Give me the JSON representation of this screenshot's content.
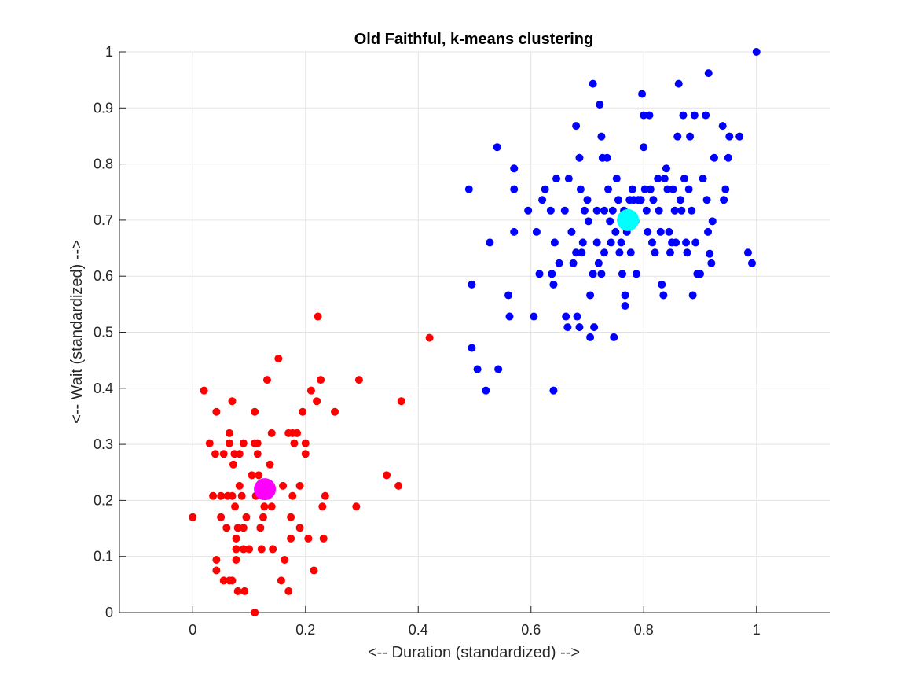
{
  "chart_data": {
    "type": "scatter",
    "title": "Old Faithful, k-means clustering",
    "xlabel": "<-- Duration (standardized) -->",
    "ylabel": "<-- Wait (standardized) -->",
    "xlim": [
      -0.13,
      1.13
    ],
    "ylim": [
      0,
      1
    ],
    "xticks": [
      0,
      0.2,
      0.4,
      0.6,
      0.8,
      1
    ],
    "xtick_labels": [
      "0",
      "0.2",
      "0.4",
      "0.6",
      "0.8",
      "1"
    ],
    "yticks": [
      0,
      0.1,
      0.2,
      0.3,
      0.4,
      0.5,
      0.6,
      0.7,
      0.8,
      0.9,
      1
    ],
    "ytick_labels": [
      "0",
      "0.1",
      "0.2",
      "0.3",
      "0.4",
      "0.5",
      "0.6",
      "0.7",
      "0.8",
      "0.9",
      "1"
    ],
    "grid": true,
    "series": [
      {
        "color": "#ff0000",
        "points": [
          [
            0.0,
            0.17
          ],
          [
            0.02,
            0.396
          ],
          [
            0.03,
            0.302
          ],
          [
            0.036,
            0.208
          ],
          [
            0.04,
            0.283
          ],
          [
            0.042,
            0.358
          ],
          [
            0.042,
            0.094
          ],
          [
            0.042,
            0.075
          ],
          [
            0.05,
            0.208
          ],
          [
            0.05,
            0.17
          ],
          [
            0.055,
            0.057
          ],
          [
            0.055,
            0.283
          ],
          [
            0.06,
            0.151
          ],
          [
            0.062,
            0.208
          ],
          [
            0.065,
            0.32
          ],
          [
            0.065,
            0.302
          ],
          [
            0.065,
            0.057
          ],
          [
            0.07,
            0.377
          ],
          [
            0.07,
            0.208
          ],
          [
            0.07,
            0.057
          ],
          [
            0.072,
            0.264
          ],
          [
            0.074,
            0.283
          ],
          [
            0.075,
            0.189
          ],
          [
            0.077,
            0.132
          ],
          [
            0.077,
            0.113
          ],
          [
            0.077,
            0.094
          ],
          [
            0.08,
            0.151
          ],
          [
            0.08,
            0.038
          ],
          [
            0.083,
            0.283
          ],
          [
            0.083,
            0.226
          ],
          [
            0.087,
            0.208
          ],
          [
            0.09,
            0.302
          ],
          [
            0.09,
            0.151
          ],
          [
            0.09,
            0.113
          ],
          [
            0.092,
            0.038
          ],
          [
            0.095,
            0.17
          ],
          [
            0.1,
            0.113
          ],
          [
            0.105,
            0.245
          ],
          [
            0.11,
            0.0
          ],
          [
            0.11,
            0.358
          ],
          [
            0.11,
            0.302
          ],
          [
            0.112,
            0.208
          ],
          [
            0.115,
            0.302
          ],
          [
            0.115,
            0.283
          ],
          [
            0.117,
            0.245
          ],
          [
            0.12,
            0.226
          ],
          [
            0.12,
            0.151
          ],
          [
            0.122,
            0.113
          ],
          [
            0.125,
            0.17
          ],
          [
            0.127,
            0.189
          ],
          [
            0.132,
            0.415
          ],
          [
            0.137,
            0.264
          ],
          [
            0.14,
            0.32
          ],
          [
            0.14,
            0.189
          ],
          [
            0.142,
            0.113
          ],
          [
            0.152,
            0.453
          ],
          [
            0.157,
            0.057
          ],
          [
            0.16,
            0.226
          ],
          [
            0.163,
            0.094
          ],
          [
            0.17,
            0.32
          ],
          [
            0.17,
            0.038
          ],
          [
            0.174,
            0.17
          ],
          [
            0.177,
            0.32
          ],
          [
            0.177,
            0.208
          ],
          [
            0.174,
            0.132
          ],
          [
            0.18,
            0.302
          ],
          [
            0.185,
            0.32
          ],
          [
            0.19,
            0.226
          ],
          [
            0.19,
            0.151
          ],
          [
            0.195,
            0.358
          ],
          [
            0.2,
            0.283
          ],
          [
            0.2,
            0.302
          ],
          [
            0.205,
            0.132
          ],
          [
            0.21,
            0.396
          ],
          [
            0.215,
            0.075
          ],
          [
            0.22,
            0.377
          ],
          [
            0.222,
            0.528
          ],
          [
            0.227,
            0.415
          ],
          [
            0.23,
            0.189
          ],
          [
            0.232,
            0.132
          ],
          [
            0.235,
            0.208
          ],
          [
            0.252,
            0.358
          ],
          [
            0.29,
            0.189
          ],
          [
            0.295,
            0.415
          ],
          [
            0.344,
            0.245
          ],
          [
            0.365,
            0.226
          ],
          [
            0.37,
            0.377
          ],
          [
            0.42,
            0.49
          ]
        ]
      },
      {
        "color": "#0000ff",
        "points": [
          [
            0.49,
            0.755
          ],
          [
            0.495,
            0.585
          ],
          [
            0.495,
            0.472
          ],
          [
            0.505,
            0.434
          ],
          [
            0.52,
            0.396
          ],
          [
            0.527,
            0.66
          ],
          [
            0.54,
            0.83
          ],
          [
            0.542,
            0.434
          ],
          [
            0.56,
            0.566
          ],
          [
            0.562,
            0.528
          ],
          [
            0.57,
            0.792
          ],
          [
            0.57,
            0.755
          ],
          [
            0.57,
            0.679
          ],
          [
            0.595,
            0.717
          ],
          [
            0.605,
            0.528
          ],
          [
            0.61,
            0.679
          ],
          [
            0.615,
            0.604
          ],
          [
            0.62,
            0.736
          ],
          [
            0.625,
            0.755
          ],
          [
            0.635,
            0.717
          ],
          [
            0.637,
            0.604
          ],
          [
            0.64,
            0.585
          ],
          [
            0.64,
            0.396
          ],
          [
            0.642,
            0.66
          ],
          [
            0.645,
            0.774
          ],
          [
            0.65,
            0.623
          ],
          [
            0.66,
            0.717
          ],
          [
            0.662,
            0.528
          ],
          [
            0.665,
            0.509
          ],
          [
            0.667,
            0.774
          ],
          [
            0.672,
            0.679
          ],
          [
            0.675,
            0.623
          ],
          [
            0.68,
            0.868
          ],
          [
            0.68,
            0.642
          ],
          [
            0.682,
            0.528
          ],
          [
            0.686,
            0.811
          ],
          [
            0.686,
            0.509
          ],
          [
            0.688,
            0.755
          ],
          [
            0.69,
            0.642
          ],
          [
            0.692,
            0.66
          ],
          [
            0.695,
            0.717
          ],
          [
            0.7,
            0.736
          ],
          [
            0.702,
            0.698
          ],
          [
            0.705,
            0.566
          ],
          [
            0.705,
            0.491
          ],
          [
            0.71,
            0.943
          ],
          [
            0.71,
            0.604
          ],
          [
            0.712,
            0.509
          ],
          [
            0.717,
            0.717
          ],
          [
            0.717,
            0.66
          ],
          [
            0.72,
            0.623
          ],
          [
            0.722,
            0.906
          ],
          [
            0.725,
            0.849
          ],
          [
            0.725,
            0.604
          ],
          [
            0.727,
            0.811
          ],
          [
            0.73,
            0.717
          ],
          [
            0.73,
            0.642
          ],
          [
            0.735,
            0.811
          ],
          [
            0.737,
            0.755
          ],
          [
            0.74,
            0.698
          ],
          [
            0.742,
            0.66
          ],
          [
            0.745,
            0.717
          ],
          [
            0.747,
            0.491
          ],
          [
            0.75,
            0.679
          ],
          [
            0.752,
            0.774
          ],
          [
            0.755,
            0.736
          ],
          [
            0.757,
            0.642
          ],
          [
            0.76,
            0.66
          ],
          [
            0.762,
            0.604
          ],
          [
            0.765,
            0.717
          ],
          [
            0.767,
            0.566
          ],
          [
            0.767,
            0.547
          ],
          [
            0.77,
            0.679
          ],
          [
            0.775,
            0.736
          ],
          [
            0.777,
            0.642
          ],
          [
            0.78,
            0.755
          ],
          [
            0.782,
            0.736
          ],
          [
            0.785,
            0.698
          ],
          [
            0.787,
            0.604
          ],
          [
            0.79,
            0.736
          ],
          [
            0.795,
            0.736
          ],
          [
            0.797,
            0.925
          ],
          [
            0.8,
            0.887
          ],
          [
            0.8,
            0.83
          ],
          [
            0.802,
            0.755
          ],
          [
            0.805,
            0.717
          ],
          [
            0.807,
            0.679
          ],
          [
            0.81,
            0.887
          ],
          [
            0.812,
            0.755
          ],
          [
            0.815,
            0.66
          ],
          [
            0.817,
            0.736
          ],
          [
            0.82,
            0.642
          ],
          [
            0.825,
            0.774
          ],
          [
            0.827,
            0.717
          ],
          [
            0.83,
            0.679
          ],
          [
            0.832,
            0.585
          ],
          [
            0.835,
            0.566
          ],
          [
            0.837,
            0.774
          ],
          [
            0.84,
            0.792
          ],
          [
            0.842,
            0.755
          ],
          [
            0.845,
            0.679
          ],
          [
            0.847,
            0.642
          ],
          [
            0.85,
            0.66
          ],
          [
            0.852,
            0.755
          ],
          [
            0.855,
            0.717
          ],
          [
            0.857,
            0.66
          ],
          [
            0.86,
            0.849
          ],
          [
            0.862,
            0.943
          ],
          [
            0.865,
            0.736
          ],
          [
            0.867,
            0.717
          ],
          [
            0.87,
            0.887
          ],
          [
            0.872,
            0.774
          ],
          [
            0.875,
            0.66
          ],
          [
            0.877,
            0.642
          ],
          [
            0.88,
            0.755
          ],
          [
            0.882,
            0.849
          ],
          [
            0.885,
            0.717
          ],
          [
            0.887,
            0.566
          ],
          [
            0.89,
            0.887
          ],
          [
            0.892,
            0.66
          ],
          [
            0.895,
            0.604
          ],
          [
            0.9,
            0.604
          ],
          [
            0.905,
            0.774
          ],
          [
            0.91,
            0.887
          ],
          [
            0.912,
            0.736
          ],
          [
            0.914,
            0.679
          ],
          [
            0.915,
            0.962
          ],
          [
            0.917,
            0.64
          ],
          [
            0.92,
            0.623
          ],
          [
            0.922,
            0.698
          ],
          [
            0.925,
            0.811
          ],
          [
            0.94,
            0.868
          ],
          [
            0.942,
            0.736
          ],
          [
            0.945,
            0.755
          ],
          [
            0.95,
            0.811
          ],
          [
            0.952,
            0.849
          ],
          [
            0.97,
            0.849
          ],
          [
            0.985,
            0.642
          ],
          [
            0.992,
            0.623
          ],
          [
            1.0,
            1.0
          ]
        ]
      }
    ],
    "centroids": [
      {
        "color": "#ff00ff",
        "x": 0.128,
        "y": 0.22
      },
      {
        "color": "#00ffff",
        "x": 0.772,
        "y": 0.7
      }
    ],
    "colors": {
      "axis": "#262626",
      "grid": "#e3e3e3",
      "title": "#000000"
    }
  }
}
